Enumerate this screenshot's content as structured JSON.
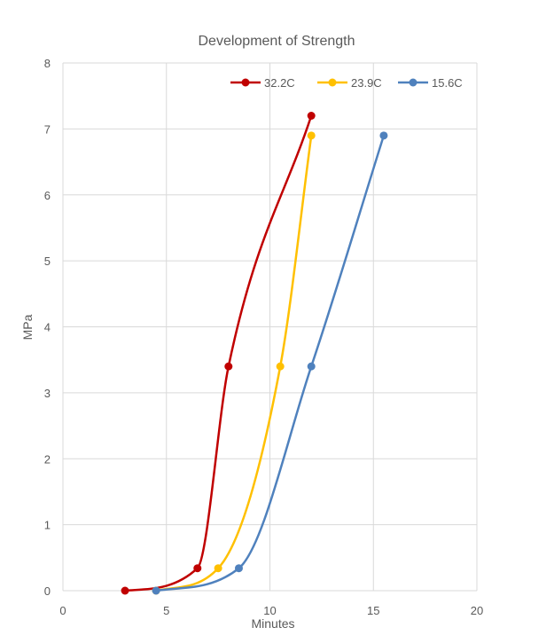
{
  "chart_data": {
    "type": "line",
    "title": "Development of Strength",
    "xlabel": "Minutes",
    "ylabel": "MPa",
    "xlim": [
      0,
      20
    ],
    "ylim": [
      0,
      8
    ],
    "x_ticks": [
      0,
      5,
      10,
      15,
      20
    ],
    "y_ticks": [
      0,
      1,
      2,
      3,
      4,
      5,
      6,
      7,
      8
    ],
    "grid": true,
    "legend_position": "top-right",
    "series": [
      {
        "name": "32.2C",
        "color": "#c00000",
        "points": [
          {
            "x": 3.0,
            "y": 0.0
          },
          {
            "x": 6.5,
            "y": 0.34
          },
          {
            "x": 8.0,
            "y": 3.4
          },
          {
            "x": 12.0,
            "y": 7.2
          }
        ]
      },
      {
        "name": "23.9C",
        "color": "#ffc000",
        "points": [
          {
            "x": 4.5,
            "y": 0.0
          },
          {
            "x": 7.5,
            "y": 0.34
          },
          {
            "x": 10.5,
            "y": 3.4
          },
          {
            "x": 12.0,
            "y": 6.9
          }
        ]
      },
      {
        "name": "15.6C",
        "color": "#4f81bd",
        "points": [
          {
            "x": 4.5,
            "y": 0.0
          },
          {
            "x": 8.5,
            "y": 0.34
          },
          {
            "x": 12.0,
            "y": 3.4
          },
          {
            "x": 15.5,
            "y": 6.9
          }
        ]
      }
    ]
  }
}
